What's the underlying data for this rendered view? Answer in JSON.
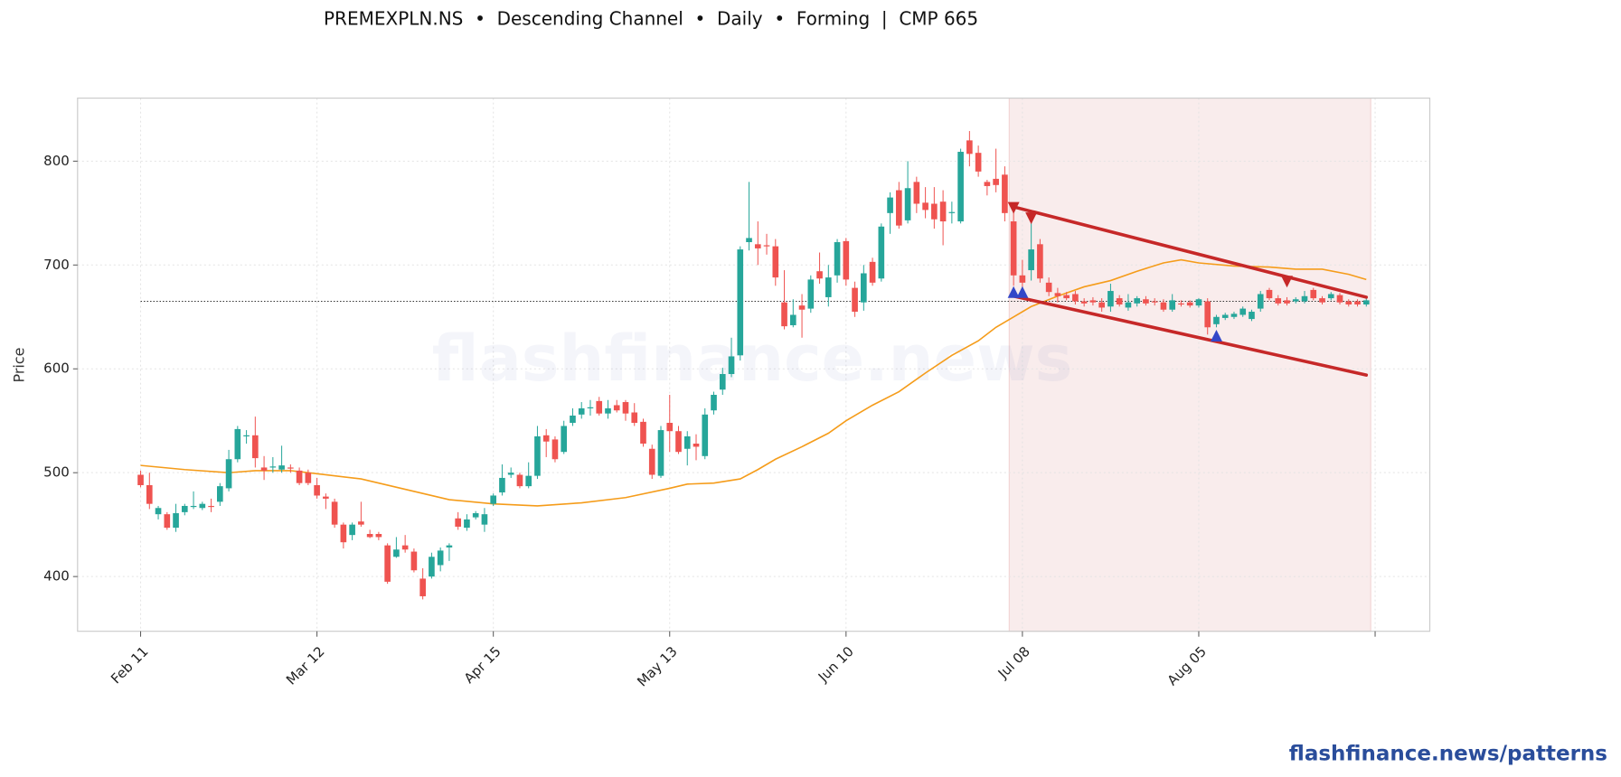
{
  "chart_data": {
    "type": "candlestick",
    "title": "PREMEXPLN.NS  •  Descending Channel  •  Daily  •  Forming  |  CMP 665",
    "y_label": "Price",
    "watermark": "flashfinance.news",
    "footer": "flashfinance.news/patterns",
    "up_color": "#26a69a",
    "down_color": "#ef5350",
    "xlim": [
      -7.15,
      146.2
    ],
    "ylim": [
      347.3,
      860.7
    ],
    "xticks": [
      {
        "value": 0,
        "label": "Feb 11"
      },
      {
        "value": 20,
        "label": "Mar 12"
      },
      {
        "value": 40,
        "label": "Apr 15"
      },
      {
        "value": 60,
        "label": "May 13"
      },
      {
        "value": 80,
        "label": "Jun 10"
      },
      {
        "value": 100,
        "label": "Jul 08"
      },
      {
        "value": 120,
        "label": "Aug 05"
      },
      {
        "value": 140,
        "label": null
      }
    ],
    "yticks": [
      400,
      500,
      600,
      700,
      800
    ],
    "grid": true,
    "open": [
      498,
      488,
      460,
      460,
      447,
      462,
      467,
      466,
      468,
      472,
      485,
      513,
      535,
      536,
      505,
      505,
      503,
      505,
      502,
      500,
      488,
      477,
      472,
      450,
      440,
      453,
      441,
      441,
      430,
      419,
      430,
      424,
      398,
      400,
      411,
      428,
      456,
      447,
      457,
      450,
      470,
      481,
      498,
      498,
      487,
      497,
      536,
      532,
      520,
      548,
      556,
      562,
      569,
      557,
      565,
      568,
      558,
      549,
      523,
      497,
      548,
      540,
      523,
      528,
      516,
      560,
      580,
      595,
      613,
      722,
      720,
      719,
      718,
      664,
      642,
      661,
      658,
      694,
      669,
      690,
      723,
      678,
      664,
      703,
      687,
      750,
      772,
      743,
      780,
      760,
      759,
      761,
      750,
      742,
      820,
      808,
      780,
      783,
      787,
      742,
      690,
      695,
      720,
      683,
      673,
      671,
      672,
      665,
      666,
      664,
      660,
      668,
      659,
      663,
      667,
      665,
      664,
      657,
      663,
      664,
      661,
      665,
      643,
      649,
      650,
      652,
      648,
      658,
      676,
      668,
      666,
      665,
      665,
      676,
      668,
      668,
      671,
      665,
      665,
      662
    ],
    "high": [
      502,
      500,
      468,
      462,
      470,
      470,
      482,
      472,
      475,
      490,
      522,
      545,
      541,
      554,
      516,
      515,
      526,
      508,
      505,
      503,
      495,
      480,
      475,
      452,
      452,
      472,
      445,
      443,
      432,
      438,
      440,
      427,
      408,
      423,
      428,
      432,
      462,
      460,
      463,
      466,
      480,
      508,
      505,
      500,
      510,
      545,
      542,
      535,
      550,
      562,
      568,
      570,
      573,
      570,
      570,
      570,
      567,
      552,
      527,
      545,
      575,
      545,
      540,
      537,
      562,
      578,
      601,
      630,
      718,
      780,
      742,
      730,
      725,
      695,
      667,
      672,
      690,
      712,
      700,
      725,
      726,
      684,
      700,
      707,
      740,
      770,
      780,
      800,
      785,
      775,
      775,
      772,
      761,
      812,
      829,
      815,
      782,
      812,
      795,
      755,
      705,
      742,
      725,
      688,
      678,
      674,
      675,
      668,
      669,
      668,
      682,
      671,
      672,
      670,
      670,
      668,
      667,
      672,
      666,
      666,
      668,
      668,
      652,
      654,
      655,
      660,
      657,
      675,
      678,
      671,
      669,
      669,
      675,
      678,
      670,
      674,
      673,
      667,
      667,
      668
    ],
    "low": [
      486,
      465,
      455,
      445,
      443,
      459,
      465,
      464,
      462,
      468,
      482,
      510,
      528,
      505,
      493,
      500,
      500,
      500,
      488,
      488,
      475,
      465,
      447,
      427,
      435,
      448,
      437,
      435,
      393,
      418,
      423,
      404,
      378,
      398,
      405,
      415,
      445,
      444,
      455,
      443,
      468,
      478,
      495,
      485,
      485,
      494,
      515,
      510,
      518,
      545,
      552,
      555,
      555,
      552,
      558,
      550,
      545,
      525,
      494,
      495,
      520,
      518,
      507,
      512,
      513,
      556,
      575,
      592,
      608,
      714,
      700,
      710,
      680,
      638,
      640,
      630,
      654,
      682,
      660,
      683,
      680,
      650,
      656,
      680,
      684,
      730,
      735,
      740,
      750,
      745,
      735,
      719,
      740,
      740,
      795,
      785,
      767,
      770,
      742,
      680,
      668,
      685,
      683,
      670,
      664,
      666,
      662,
      660,
      661,
      655,
      655,
      660,
      656,
      660,
      661,
      661,
      655,
      655,
      660,
      659,
      659,
      633,
      640,
      647,
      648,
      650,
      646,
      655,
      666,
      661,
      661,
      663,
      663,
      666,
      662,
      666,
      662,
      660,
      660,
      660
    ],
    "close": [
      488,
      470,
      466,
      447,
      461,
      468,
      468,
      470,
      467,
      487,
      513,
      542,
      536,
      514,
      502,
      506,
      507,
      504,
      490,
      490,
      478,
      475,
      450,
      433,
      450,
      450,
      438,
      438,
      395,
      426,
      426,
      406,
      381,
      419,
      425,
      430,
      448,
      455,
      461,
      460,
      478,
      495,
      500,
      487,
      497,
      535,
      530,
      513,
      545,
      555,
      562,
      563,
      557,
      562,
      560,
      557,
      548,
      528,
      498,
      541,
      540,
      520,
      535,
      525,
      556,
      575,
      595,
      612,
      715,
      726,
      716,
      718,
      688,
      641,
      652,
      657,
      686,
      687,
      688,
      722,
      686,
      655,
      692,
      683,
      737,
      765,
      738,
      774,
      759,
      753,
      744,
      742,
      751,
      809,
      807,
      790,
      776,
      777,
      750,
      690,
      683,
      715,
      687,
      674,
      670,
      668,
      665,
      663,
      664,
      659,
      675,
      662,
      664,
      668,
      663,
      664,
      657,
      666,
      662,
      661,
      667,
      640,
      650,
      652,
      653,
      658,
      655,
      672,
      668,
      663,
      663,
      667,
      670,
      668,
      664,
      672,
      664,
      662,
      662,
      666
    ],
    "shade_x": [
      99,
      139
    ],
    "shade_color": "#f9ecec",
    "moving_average": {
      "color": "#f59c1a",
      "x": [
        0,
        5,
        10,
        13,
        17,
        20,
        25,
        30,
        35,
        40,
        45,
        50,
        55,
        60,
        62,
        65,
        68,
        70,
        72,
        75,
        78,
        80,
        83,
        86,
        89,
        92,
        95,
        97,
        99,
        101,
        104,
        107,
        110,
        113,
        116,
        118,
        120,
        124,
        128,
        131,
        134,
        137,
        139
      ],
      "values": [
        507,
        503,
        500,
        502,
        502,
        499,
        494,
        484,
        474,
        470,
        468,
        471,
        476,
        485,
        489,
        490,
        494,
        503,
        513,
        525,
        538,
        550,
        565,
        578,
        596,
        613,
        627,
        640,
        650,
        660,
        670,
        679,
        685,
        694,
        702,
        705,
        702,
        699,
        698,
        696,
        696,
        691,
        686
      ]
    },
    "cmp_line": {
      "color": "#333333",
      "x": [
        0,
        139
      ],
      "values": [
        665,
        665
      ]
    },
    "channel_color": "#c62828",
    "channel": [
      {
        "x": [
          99,
          139
        ],
        "values": [
          756,
          669
        ]
      },
      {
        "x": [
          99,
          139
        ],
        "values": [
          670,
          594
        ]
      }
    ],
    "peaks": {
      "color": "#c62828",
      "x": [
        99,
        101,
        130
      ],
      "values": [
        755,
        745,
        684
      ]
    },
    "troughs": {
      "color": "#3347c8",
      "x": [
        99,
        100,
        122
      ],
      "values": [
        674,
        674,
        632
      ]
    }
  }
}
